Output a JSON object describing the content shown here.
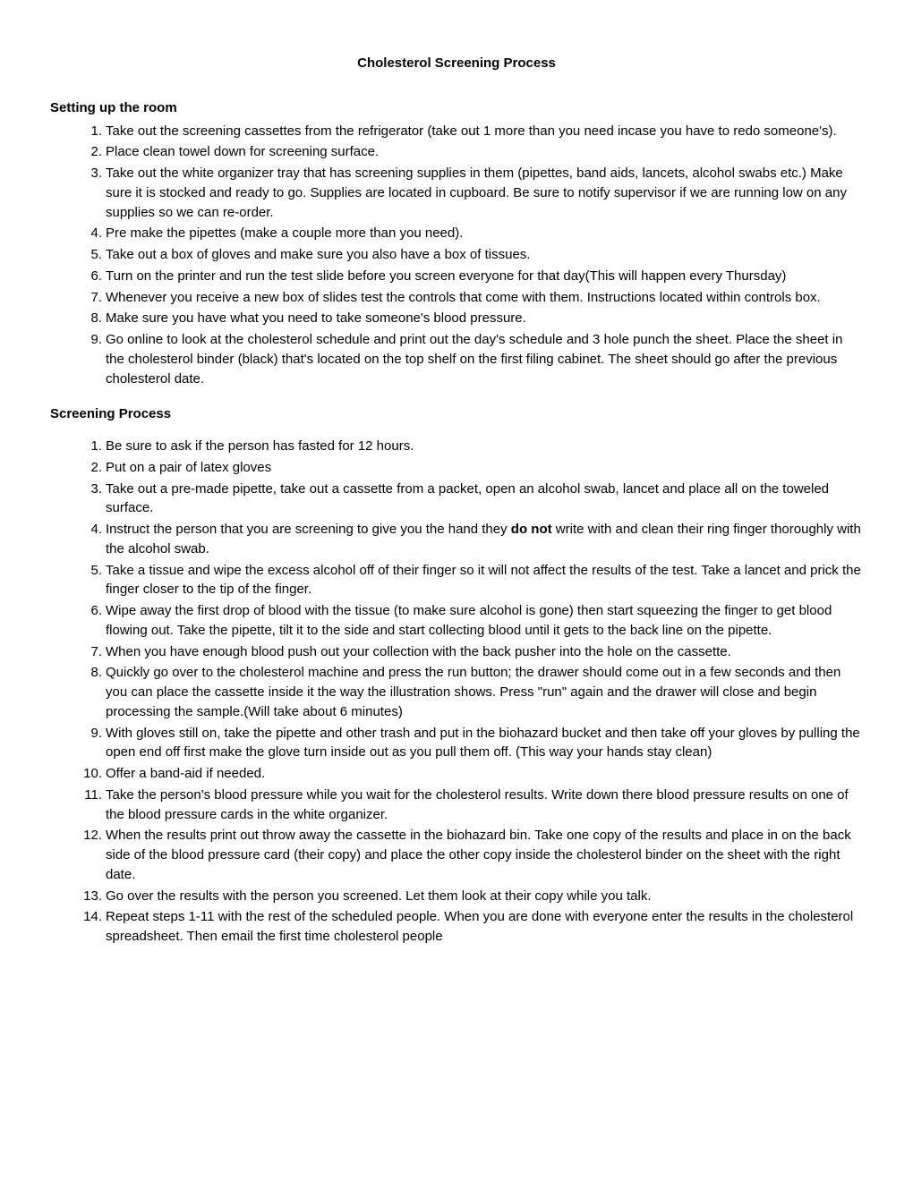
{
  "title": "Cholesterol Screening Process",
  "section1": {
    "heading": "Setting up the room",
    "items": [
      "Take out the screening cassettes from the refrigerator (take out 1 more than you need incase you have to redo someone's).",
      "Place clean towel down for screening surface.",
      "Take out the white organizer tray that has screening supplies in them (pipettes, band aids, lancets, alcohol swabs etc.) Make sure it is stocked and ready to go. Supplies are located in cupboard. Be sure to notify supervisor if we are running low on any supplies so we can re-order.",
      "Pre make the pipettes (make a couple more than you need).",
      "Take out a box of gloves and make sure you also have a box of tissues.",
      "Turn on the printer and run the test slide before you screen everyone for that day(This will happen every Thursday)",
      "Whenever you receive a new box of slides test the controls that come with them. Instructions located within controls box.",
      "Make sure you have what you need to take someone's blood pressure.",
      "Go online to look at the cholesterol schedule and print out the day's schedule and 3 hole punch the sheet. Place the sheet in the cholesterol binder (black) that's located on the top shelf on the first filing cabinet. The sheet should go after the previous cholesterol date."
    ]
  },
  "section2": {
    "heading": "Screening Process",
    "items": [
      "Be sure to ask if the person has fasted for 12 hours.",
      "Put on a pair of latex gloves",
      "Take out a pre-made pipette, take out a cassette from a packet, open an alcohol swab, lancet and place all on the toweled surface.",
      {
        "pre": "Instruct the person that you are screening to give you the hand they ",
        "bold": "do not",
        "post": " write with and clean their ring finger thoroughly with the alcohol swab."
      },
      "Take a tissue and wipe the excess alcohol off of their finger so it will not affect the results of the test. Take a lancet and prick the finger closer to the tip of the finger.",
      "Wipe away the first drop of blood with the tissue (to make sure alcohol is gone) then start squeezing the finger to get blood flowing out. Take the pipette, tilt it to the side and start collecting blood until it gets to the back line on the pipette.",
      "When you have enough blood push out your collection with the back pusher into the hole on the cassette.",
      "Quickly go over to the cholesterol machine and press the run button; the drawer should come out in a few seconds and then you can place the cassette inside it the way the illustration shows. Press \"run\" again and the drawer will close and begin processing the sample.(Will take about 6 minutes)",
      "With gloves still on, take the pipette and other trash and put in the biohazard bucket and then take off your gloves by pulling the open end off first make the glove turn inside out as you pull them off. (This way your hands stay clean)",
      "Offer a band-aid if needed.",
      "Take the person's blood pressure while you wait for the cholesterol results. Write down there blood pressure results on one of the blood pressure cards in the white organizer.",
      "When the results print out throw away the cassette in the biohazard bin. Take one copy of the results and place in on the back side of the blood pressure card (their copy) and place the other copy inside the cholesterol binder on the sheet with the right date.",
      "Go over the results with the person you screened. Let them look at their copy while you talk.",
      "Repeat steps 1-11 with the rest of the scheduled people. When you are done with everyone enter the results in the cholesterol spreadsheet. Then email the first time cholesterol people"
    ]
  }
}
